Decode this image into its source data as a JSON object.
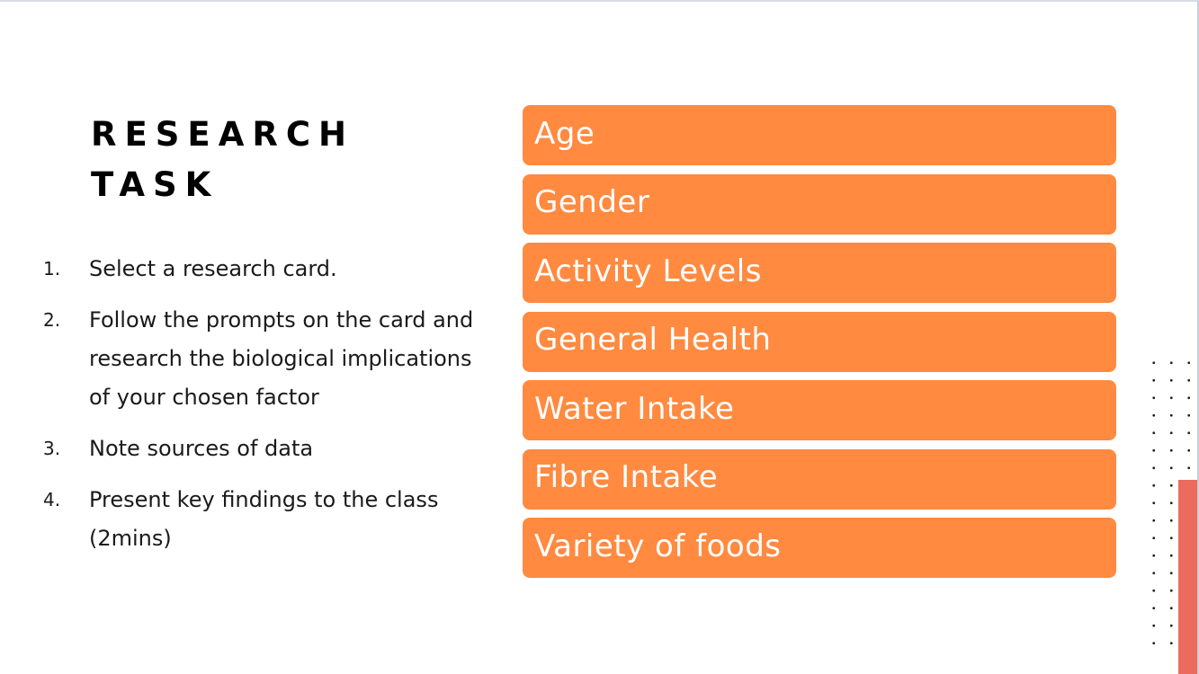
{
  "slide": {
    "title_lines": [
      "RESEARCH",
      "TASK"
    ],
    "steps": [
      {
        "number": "1.",
        "text": "Select a research card."
      },
      {
        "number": "2.",
        "text": "Follow the prompts on the card and research the biological implications of your chosen factor"
      },
      {
        "number": "3.",
        "text": "Note sources of data"
      },
      {
        "number": "4.",
        "text": "Present key findings to the class (2mins)"
      }
    ],
    "factors": [
      "Age",
      "Gender",
      "Activity Levels",
      "General Health",
      "Water Intake",
      "Fibre Intake",
      "Variety of foods"
    ]
  },
  "colors": {
    "factor_fill": "#ff8a40",
    "accent_bar": "#eb6b5c",
    "title_text": "#000000"
  }
}
